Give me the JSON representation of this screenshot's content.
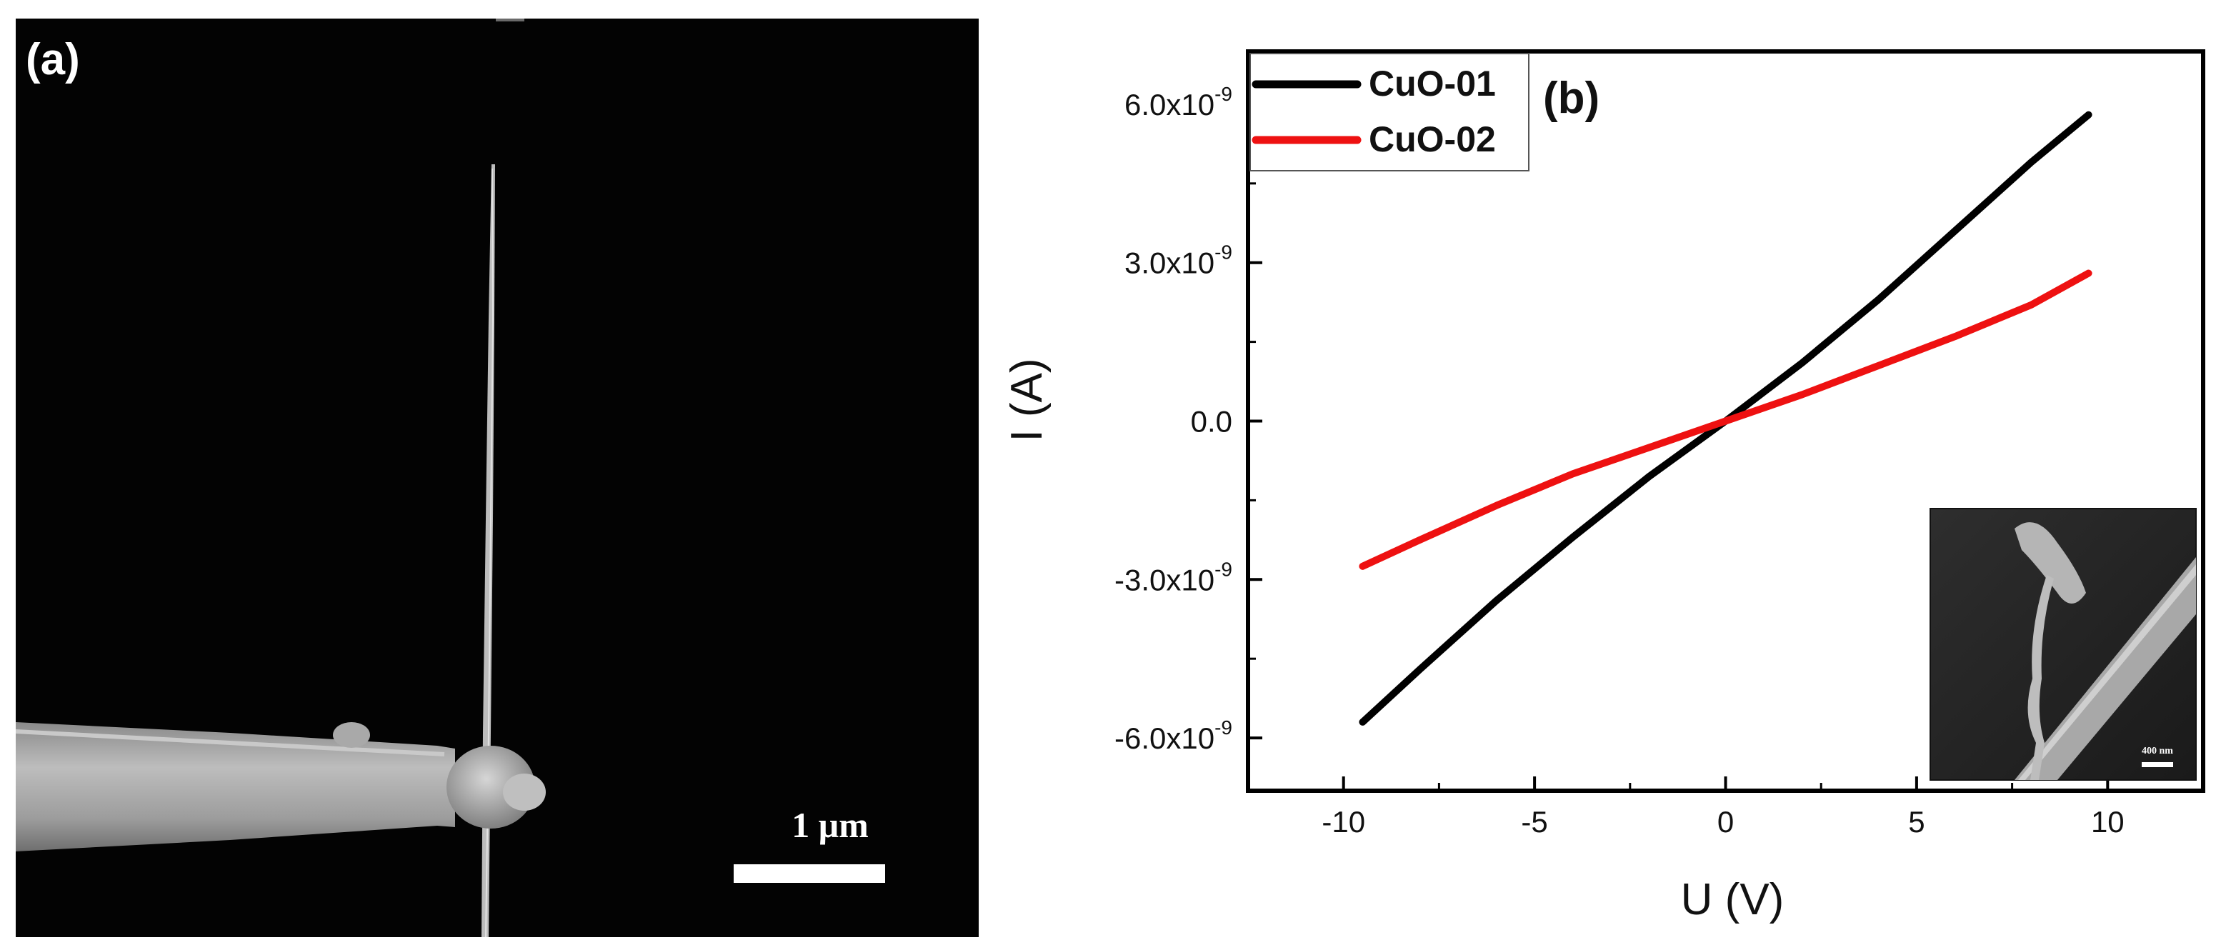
{
  "panel_a": {
    "label": "(a)",
    "scale_bar_label": "1 μm"
  },
  "colors": {
    "cuo01": "#000000",
    "cuo02": "#ee1111",
    "sem_background": "#030303"
  },
  "chart_data": {
    "type": "line",
    "label": "(b)",
    "xlabel": "U (V)",
    "ylabel": "I (A)",
    "xlim": [
      -12.5,
      12.5
    ],
    "ylim": [
      -7e-09,
      7e-09
    ],
    "x_ticks": [
      -10,
      -5,
      0,
      5,
      10
    ],
    "x_tick_labels": [
      "-10",
      "-5",
      "0",
      "5",
      "10"
    ],
    "y_ticks": [
      {
        "value": 6e-09,
        "mantissa": "6.0x10",
        "exponent": "-9"
      },
      {
        "value": 3e-09,
        "mantissa": "3.0x10",
        "exponent": "-9"
      },
      {
        "value": 0,
        "mantissa": "0.0",
        "exponent": ""
      },
      {
        "value": -3e-09,
        "mantissa": "-3.0x10",
        "exponent": "-9"
      },
      {
        "value": -6e-09,
        "mantissa": "-6.0x10",
        "exponent": "-9"
      }
    ],
    "grid": false,
    "legend_position": "top-left",
    "series": [
      {
        "name": "CuO-01",
        "color": "#000000",
        "x": [
          -9.5,
          -8,
          -6,
          -4,
          -2,
          0,
          2,
          4,
          6,
          8,
          9.5
        ],
        "y": [
          -5.7e-09,
          -4.7e-09,
          -3.4e-09,
          -2.2e-09,
          -1.05e-09,
          0,
          1.1e-09,
          2.3e-09,
          3.6e-09,
          4.9e-09,
          5.8e-09
        ]
      },
      {
        "name": "CuO-02",
        "color": "#ee1111",
        "x": [
          -9.5,
          -8,
          -6,
          -4,
          -2,
          0,
          2,
          4,
          6,
          8,
          9.5
        ],
        "y": [
          -2.75e-09,
          -2.25e-09,
          -1.6e-09,
          -1e-09,
          -5e-10,
          0,
          5e-10,
          1.05e-09,
          1.6e-09,
          2.2e-09,
          2.8e-09
        ]
      }
    ],
    "inset": {
      "scale_bar_label": "400 nm"
    }
  }
}
